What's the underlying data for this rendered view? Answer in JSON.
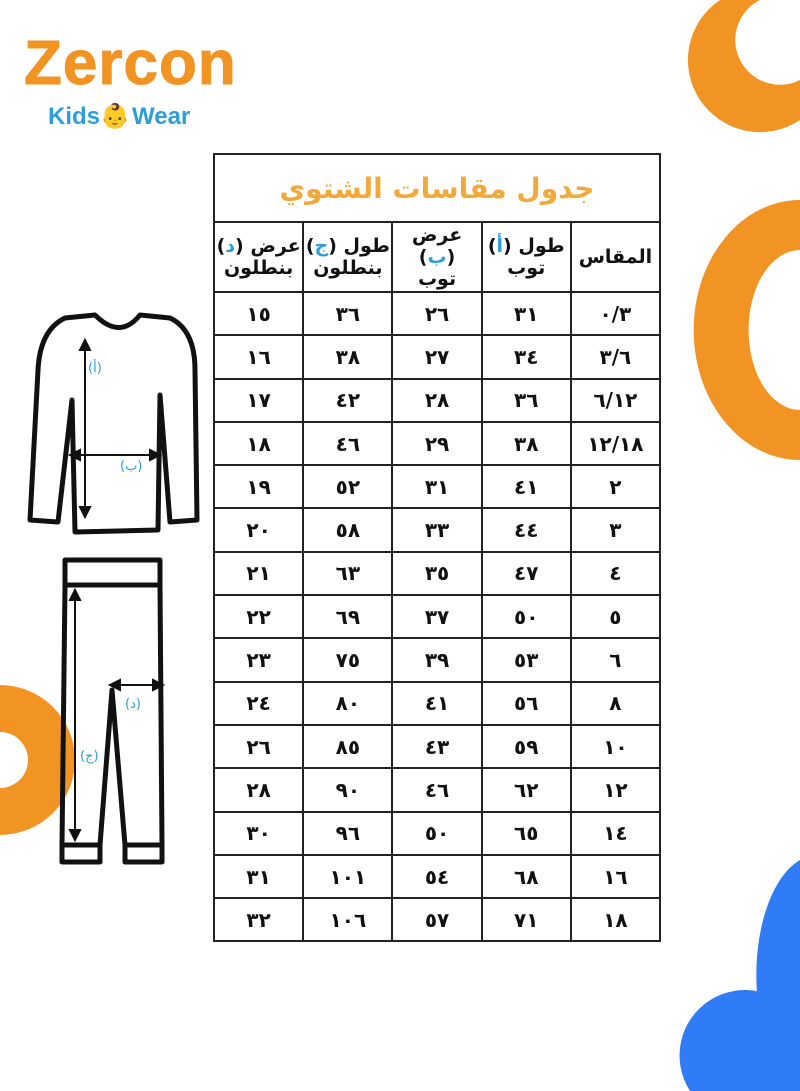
{
  "brand": {
    "name": "Zercon",
    "tagline_left": "Kids",
    "tagline_right": "Wear"
  },
  "colors": {
    "orange": "#f29423",
    "blue": "#2c9fd6",
    "title": "#f2a93a",
    "decor_blue": "#2f7cf6"
  },
  "table": {
    "title": "جدول مقاسات الشتوي",
    "headers": [
      {
        "line1": "المقاس",
        "letter": "",
        "line2": ""
      },
      {
        "line1": "طول",
        "letter": "أ",
        "line2": "توب"
      },
      {
        "line1": "عرض",
        "letter": "ب",
        "line2": "توب"
      },
      {
        "line1": "طول",
        "letter": "ج",
        "line2": "بنطلون"
      },
      {
        "line1": "عرض",
        "letter": "د",
        "line2": "بنطلون"
      }
    ],
    "rows": [
      [
        "٠/٣",
        "٣١",
        "٢٦",
        "٣٦",
        "١٥"
      ],
      [
        "٣/٦",
        "٣٤",
        "٢٧",
        "٣٨",
        "١٦"
      ],
      [
        "٦/١٢",
        "٣٦",
        "٢٨",
        "٤٢",
        "١٧"
      ],
      [
        "١٢/١٨",
        "٣٨",
        "٢٩",
        "٤٦",
        "١٨"
      ],
      [
        "٢",
        "٤١",
        "٣١",
        "٥٢",
        "١٩"
      ],
      [
        "٣",
        "٤٤",
        "٣٣",
        "٥٨",
        "٢٠"
      ],
      [
        "٤",
        "٤٧",
        "٣٥",
        "٦٣",
        "٢١"
      ],
      [
        "٥",
        "٥٠",
        "٣٧",
        "٦٩",
        "٢٢"
      ],
      [
        "٦",
        "٥٣",
        "٣٩",
        "٧٥",
        "٢٣"
      ],
      [
        "٨",
        "٥٦",
        "٤١",
        "٨٠",
        "٢٤"
      ],
      [
        "١٠",
        "٥٩",
        "٤٣",
        "٨٥",
        "٢٦"
      ],
      [
        "١٢",
        "٦٢",
        "٤٦",
        "٩٠",
        "٢٨"
      ],
      [
        "١٤",
        "٦٥",
        "٥٠",
        "٩٦",
        "٣٠"
      ],
      [
        "١٦",
        "٦٨",
        "٥٤",
        "١٠١",
        "٣١"
      ],
      [
        "١٨",
        "٧١",
        "٥٧",
        "١٠٦",
        "٣٢"
      ]
    ]
  },
  "diagram": {
    "top_length": "أ",
    "top_width": "ب",
    "pants_length": "ج",
    "pants_width": "د"
  }
}
